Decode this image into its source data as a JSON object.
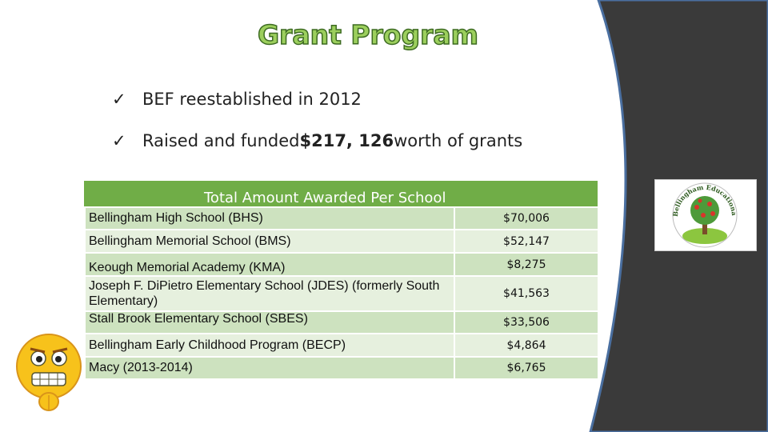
{
  "slide": {
    "title": "Grant Program",
    "bullets": [
      {
        "check": "ü",
        "text": "BEF reestablished in 2012",
        "pre": "",
        "bold": "",
        "post": ""
      },
      {
        "check": "ü",
        "pre": "Raised and funded ",
        "bold": "$217, 126",
        "post": " worth of grants"
      }
    ]
  },
  "table": {
    "header": "Total Amount Awarded Per School",
    "rows": [
      {
        "school": "Bellingham High School (BHS)",
        "amount": "$70,006"
      },
      {
        "school": "Bellingham Memorial School (BMS)",
        "amount": "$52,147"
      },
      {
        "school": "Keough Memorial Academy (KMA)",
        "amount": "$8,275"
      },
      {
        "school": "Joseph F. DiPietro Elementary School (JDES) (formerly South Elementary)",
        "amount": "$41,563"
      },
      {
        "school": "Stall Brook Elementary School (SBES)",
        "amount": "$33,506"
      },
      {
        "school": "Bellingham Early Childhood Program (BECP)",
        "amount": "$4,864"
      },
      {
        "school": "Macy (2013-2014)",
        "amount": "$6,765"
      }
    ]
  },
  "logo": {
    "text": "Bellingham Educational Foundation"
  },
  "colors": {
    "accent_green": "#70ad47",
    "title_green": "#9ccf5d",
    "dark_panel": "#3a3a3a"
  }
}
